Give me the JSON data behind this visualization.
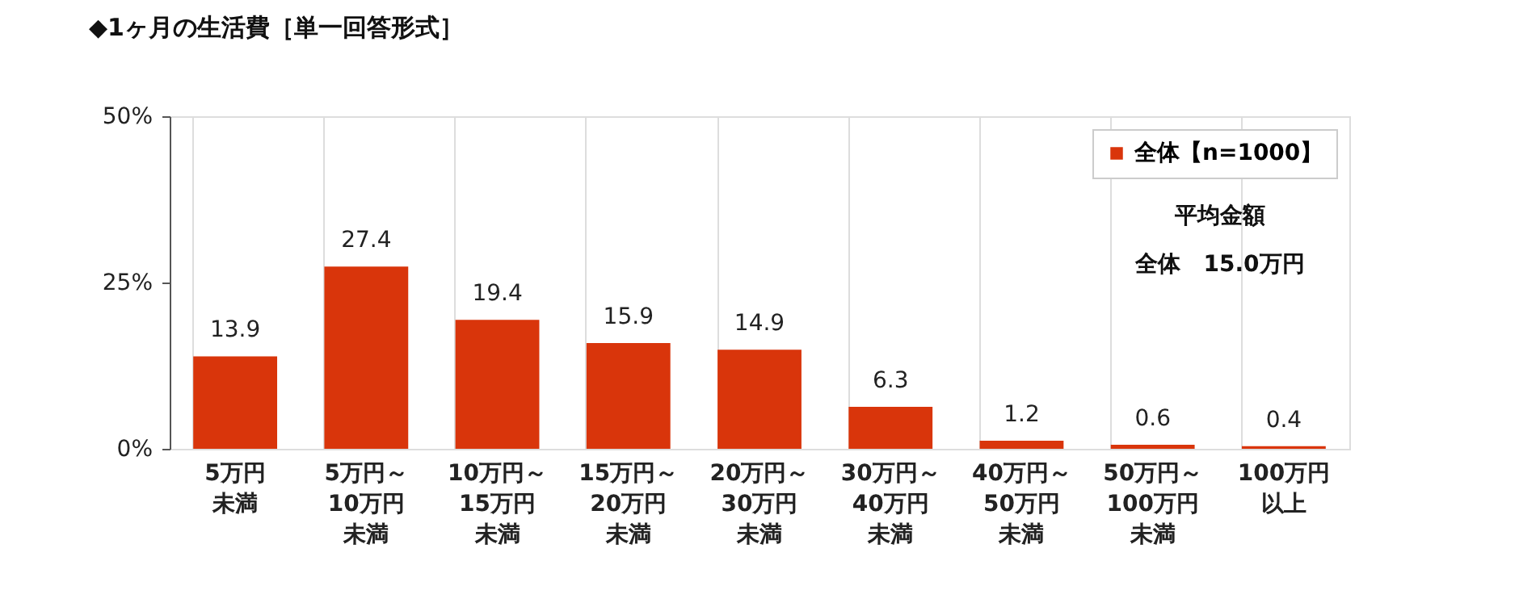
{
  "chart_data": {
    "type": "bar",
    "title": "◆1ヶ月の生活費［単一回答形式］",
    "categories": [
      "5万円未満",
      "5万円～10万円未満",
      "10万円～15万円未満",
      "15万円～20万円未満",
      "20万円～30万円未満",
      "30万円～40万円未満",
      "40万円～50万円未満",
      "50万円～100万円未満",
      "100万円以上"
    ],
    "series": [
      {
        "name": "全体【n=1000】",
        "color": "#d9350b",
        "values": [
          13.9,
          27.4,
          19.4,
          15.9,
          14.9,
          6.3,
          1.2,
          0.6,
          0.4
        ]
      }
    ],
    "ylim": [
      0,
      50
    ],
    "yticks": [
      {
        "value": 0,
        "label": "0%"
      },
      {
        "value": 25,
        "label": "25%"
      },
      {
        "value": 50,
        "label": "50%"
      }
    ],
    "data_labels": true,
    "grid": "x",
    "legend": "top right",
    "annotations": [
      "平均金額",
      "全体　15.0万円"
    ]
  }
}
